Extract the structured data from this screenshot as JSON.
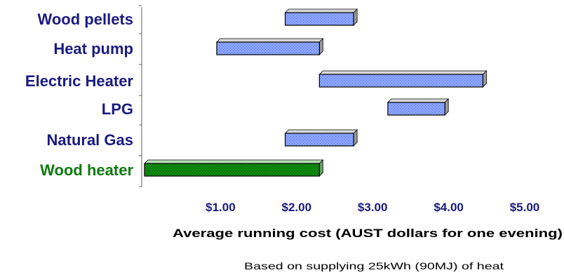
{
  "chart_data": {
    "type": "bar",
    "orientation": "horizontal",
    "floating": true,
    "categories": [
      "Wood pellets",
      "Heat pump",
      "Electric Heater",
      "LPG",
      "Natural Gas",
      "Wood heater"
    ],
    "ranges": [
      {
        "name": "Wood pellets",
        "low": 1.85,
        "high": 2.75
      },
      {
        "name": "Heat pump",
        "low": 0.95,
        "high": 2.3
      },
      {
        "name": "Electric Heater",
        "low": 2.3,
        "high": 4.45
      },
      {
        "name": "LPG",
        "low": 3.2,
        "high": 3.95
      },
      {
        "name": "Natural Gas",
        "low": 1.85,
        "high": 2.75
      },
      {
        "name": "Wood heater",
        "low": 0.0,
        "high": 2.3
      }
    ],
    "xlim": [
      0,
      5
    ],
    "xticks": [
      1,
      2,
      3,
      4,
      5
    ],
    "xtick_labels": [
      "$1.00",
      "$2.00",
      "$3.00",
      "$4.00",
      "$5.00"
    ],
    "xlabel": "Average running cost (AUST dollars for one evening)",
    "footnote": "Based on supplying 25kWh (90MJ) of heat",
    "colors": {
      "default_bar": "#8aa4ff",
      "default_bar_hatch": "#5a72d8",
      "highlight_bar": "#0e8a0e",
      "highlight_bar_hatch": "#0a5a0a",
      "bar_edge": "#000000",
      "category_label": "#1a1a80",
      "highlight_label": "#0e7a0e",
      "tick_label": "#1a1a80"
    },
    "highlight_category": "Wood heater"
  }
}
